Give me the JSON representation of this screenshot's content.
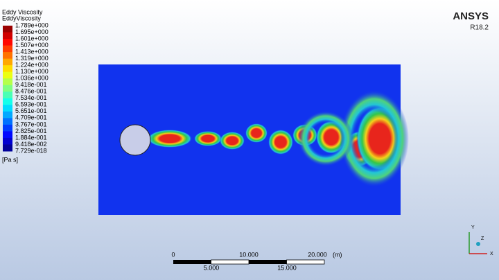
{
  "legend": {
    "title": "Eddy Viscosity",
    "variable": "EddyViscosity",
    "labels": [
      "1.789e+000",
      "1.695e+000",
      "1.601e+000",
      "1.507e+000",
      "1.413e+000",
      "1.319e+000",
      "1.224e+000",
      "1.130e+000",
      "1.036e+000",
      "9.418e-001",
      "8.476e-001",
      "7.534e-001",
      "6.593e-001",
      "5.651e-001",
      "4.709e-001",
      "3.767e-001",
      "2.825e-001",
      "1.884e-001",
      "9.418e-002",
      "7.729e-018"
    ],
    "unit": "[Pa s]"
  },
  "logo": {
    "name": "ANSYS",
    "version": "R18.2"
  },
  "scale_bar": {
    "top_labels": [
      "0",
      "10.000",
      "20.000"
    ],
    "unit": "(m)",
    "bottom_labels": [
      "5.000",
      "15.000"
    ]
  },
  "triad": {
    "y": "Y",
    "x": "X",
    "z": "Z"
  }
}
